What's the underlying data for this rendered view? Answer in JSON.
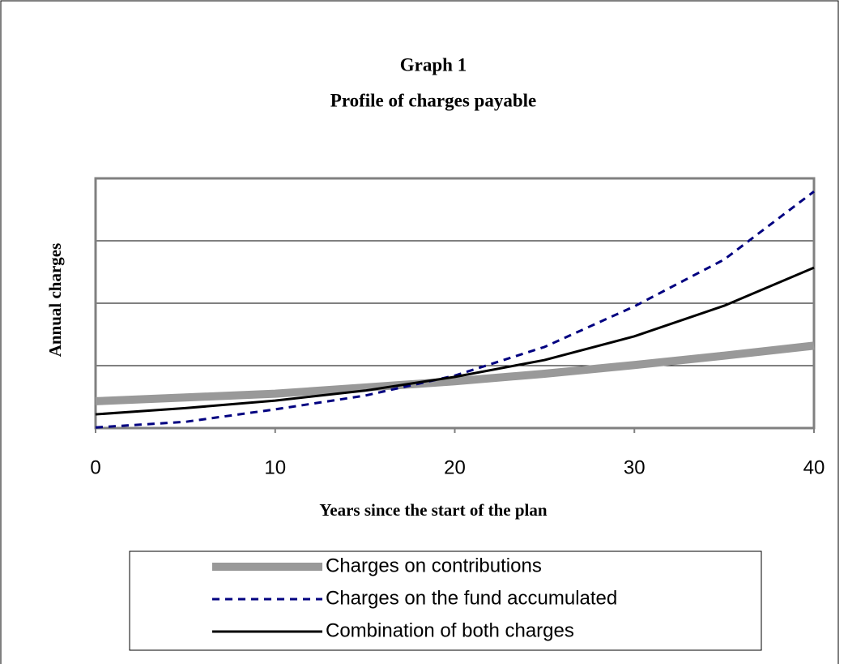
{
  "chart_data": {
    "type": "line",
    "title": "Graph 1",
    "subtitle": "Profile of charges payable",
    "x_label": "Years since the start of the plan",
    "y_label": "Annual charges",
    "x": [
      0,
      5,
      10,
      15,
      20,
      25,
      30,
      35,
      40
    ],
    "xlim": [
      0,
      40
    ],
    "xticks": [
      0,
      10,
      20,
      30,
      40
    ],
    "ylim": [
      0,
      4
    ],
    "yticks": [
      0,
      1,
      2,
      3,
      4
    ],
    "grid": true,
    "series": [
      {
        "name": "Charges on contributions",
        "color": "#999999",
        "style": "thick",
        "values": [
          0.43,
          0.49,
          0.55,
          0.65,
          0.75,
          0.87,
          1.01,
          1.16,
          1.32
        ]
      },
      {
        "name": "Charges on the fund accumulated",
        "color": "#000080",
        "style": "dashed",
        "values": [
          0.01,
          0.1,
          0.3,
          0.52,
          0.84,
          1.3,
          1.95,
          2.7,
          3.79
        ]
      },
      {
        "name": "Combination of both charges",
        "color": "#000000",
        "style": "solid",
        "values": [
          0.22,
          0.32,
          0.44,
          0.6,
          0.82,
          1.09,
          1.47,
          1.96,
          2.57
        ]
      }
    ]
  }
}
